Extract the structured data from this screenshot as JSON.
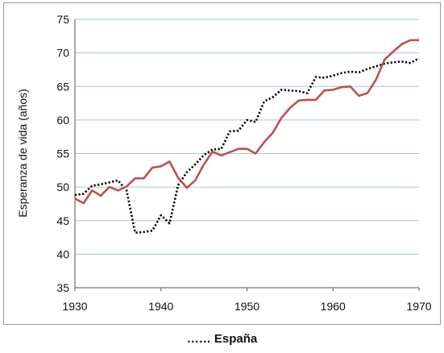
{
  "chart_data": {
    "type": "line",
    "title": "",
    "xlabel": "",
    "ylabel": "Esperanza de vida (años)",
    "xlim": [
      1930,
      1970
    ],
    "ylim": [
      35,
      75
    ],
    "xticks": [
      1930,
      1940,
      1950,
      1960,
      1970
    ],
    "yticks": [
      35,
      40,
      45,
      50,
      55,
      60,
      65,
      70,
      75
    ],
    "grid": "horizontal",
    "legend_text": "…… España",
    "colors": {
      "solid_series": "#c0504d",
      "dotted_series": "#000000",
      "grid": "#a8c4df"
    },
    "series": [
      {
        "name": "España",
        "style": "dotted",
        "x": [
          1930,
          1931,
          1932,
          1933,
          1934,
          1935,
          1936,
          1937,
          1938,
          1939,
          1940,
          1941,
          1942,
          1943,
          1944,
          1945,
          1946,
          1947,
          1948,
          1949,
          1950,
          1951,
          1952,
          1953,
          1954,
          1955,
          1956,
          1957,
          1958,
          1959,
          1960,
          1961,
          1962,
          1963,
          1964,
          1965,
          1966,
          1967,
          1968,
          1969,
          1970
        ],
        "values": [
          48.8,
          49.0,
          50.2,
          50.4,
          50.7,
          51.0,
          49.5,
          43.2,
          43.3,
          43.5,
          45.8,
          44.6,
          50.3,
          52.2,
          53.4,
          54.8,
          55.6,
          55.7,
          58.3,
          58.4,
          60.0,
          59.7,
          62.8,
          63.4,
          64.5,
          64.4,
          64.3,
          64.0,
          66.4,
          66.3,
          66.6,
          67.0,
          67.2,
          67.1,
          67.6,
          68.0,
          68.4,
          68.6,
          68.7,
          68.5,
          69.2
        ]
      },
      {
        "style": "solid",
        "x": [
          1930,
          1931,
          1932,
          1933,
          1934,
          1935,
          1936,
          1937,
          1938,
          1939,
          1940,
          1941,
          1942,
          1943,
          1944,
          1945,
          1946,
          1947,
          1948,
          1949,
          1950,
          1951,
          1952,
          1953,
          1954,
          1955,
          1956,
          1957,
          1958,
          1959,
          1960,
          1961,
          1962,
          1963,
          1964,
          1965,
          1966,
          1967,
          1968,
          1969,
          1970
        ],
        "values": [
          48.3,
          47.6,
          49.5,
          48.7,
          50.0,
          49.5,
          50.1,
          51.3,
          51.3,
          52.9,
          53.1,
          53.8,
          51.4,
          49.9,
          51.0,
          53.4,
          55.3,
          54.7,
          55.2,
          55.7,
          55.7,
          55.0,
          56.7,
          58.1,
          60.3,
          61.8,
          62.9,
          63.0,
          63.0,
          64.4,
          64.5,
          64.9,
          65.0,
          63.6,
          64.0,
          66.0,
          69.0,
          70.2,
          71.3,
          71.9,
          71.9
        ]
      }
    ]
  }
}
